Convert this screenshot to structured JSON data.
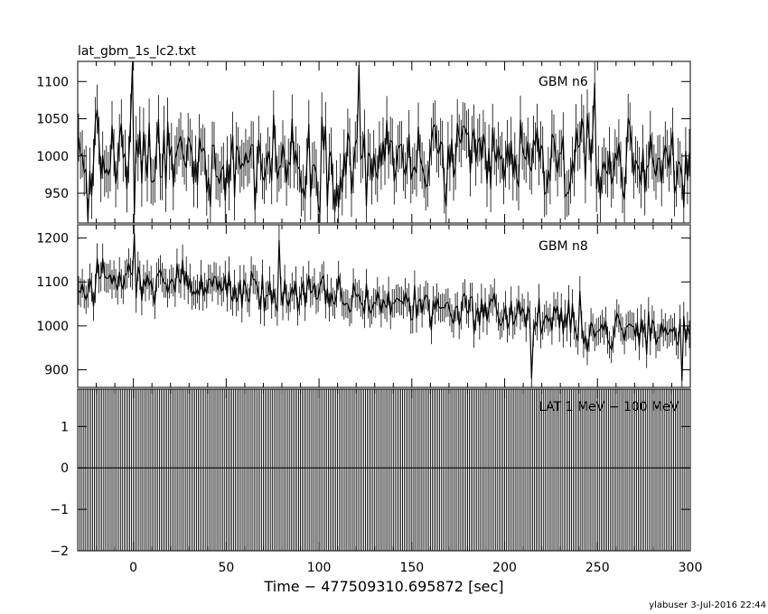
{
  "header": {
    "file_title": "lat_gbm_1s_lc2.txt",
    "footer": "ylabuser  3-Jul-2016 22:44"
  },
  "chart_data": {
    "type": "line",
    "xlabel": "Time − 477509310.695872 [sec]",
    "xlim": [
      -30,
      300
    ],
    "x_ticks": [
      0,
      50,
      100,
      150,
      200,
      250,
      300
    ],
    "x_tick_labels": [
      "0",
      "50",
      "100",
      "150",
      "200",
      "250",
      "300"
    ],
    "panels": [
      {
        "name": "GBM n6",
        "ylim": [
          910,
          1127
        ],
        "y_ticks": [
          950,
          1000,
          1050,
          1100
        ],
        "y_tick_labels": [
          "950",
          "1000",
          "1050",
          "1100"
        ],
        "trend": [
          [
            -30,
            995
          ],
          [
            300,
            992
          ]
        ],
        "noise": 37,
        "highlights": [
          [
            -1,
            1125
          ],
          [
            0,
            921
          ],
          [
            121,
            1122
          ],
          [
            -25,
            912
          ],
          [
            248,
            1098
          ]
        ]
      },
      {
        "name": "GBM n8",
        "ylim": [
          860,
          1230
        ],
        "y_ticks": [
          900,
          1000,
          1100,
          1200
        ],
        "y_tick_labels": [
          "900",
          "1000",
          "1100",
          "1200"
        ],
        "trend": [
          [
            -30,
            1085
          ],
          [
            0,
            1110
          ],
          [
            60,
            1080
          ],
          [
            150,
            1050
          ],
          [
            200,
            1030
          ],
          [
            250,
            990
          ],
          [
            300,
            985
          ]
        ],
        "noise": 30,
        "highlights": [
          [
            0,
            1210
          ],
          [
            78,
            1195
          ],
          [
            214,
            880
          ],
          [
            295,
            875
          ],
          [
            240,
            1080
          ]
        ]
      },
      {
        "name": "LAT 1 MeV − 100 MeV",
        "ylim": [
          -2,
          1.9
        ],
        "y_ticks": [
          -2,
          -1,
          0,
          1
        ],
        "y_tick_labels": [
          "−2",
          "−1",
          "0",
          "1"
        ],
        "values": "all zero, uncertainty bars spanning the full axis"
      }
    ]
  }
}
